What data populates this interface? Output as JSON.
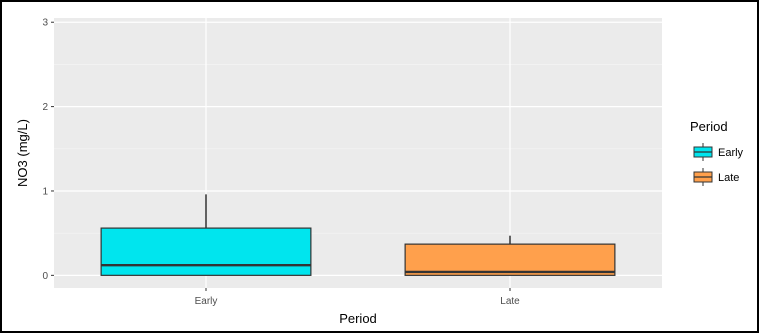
{
  "chart_data": {
    "type": "boxplot",
    "title": "",
    "xlabel": "Period",
    "ylabel": "NO3 (mg/L)",
    "ylim": [
      -0.15,
      3.05
    ],
    "y_ticks": [
      0,
      1,
      2,
      3
    ],
    "y_tick_labels": [
      "0",
      "1",
      "2",
      "3"
    ],
    "grid": true,
    "legend_position": "right",
    "legend_title": "Period",
    "categories": [
      "Early",
      "Late"
    ],
    "series": [
      {
        "name": "Early",
        "min": 0.0,
        "q1": 0.0,
        "median": 0.12,
        "q3": 0.56,
        "max": 0.96,
        "color": "#00e5ee"
      },
      {
        "name": "Late",
        "min": 0.0,
        "q1": 0.0,
        "median": 0.04,
        "q3": 0.37,
        "max": 0.47,
        "color": "#ffa04c"
      }
    ],
    "colors": {
      "panel": "#ebebeb",
      "grid_major": "#ffffff",
      "box_outline": "#333333"
    }
  }
}
